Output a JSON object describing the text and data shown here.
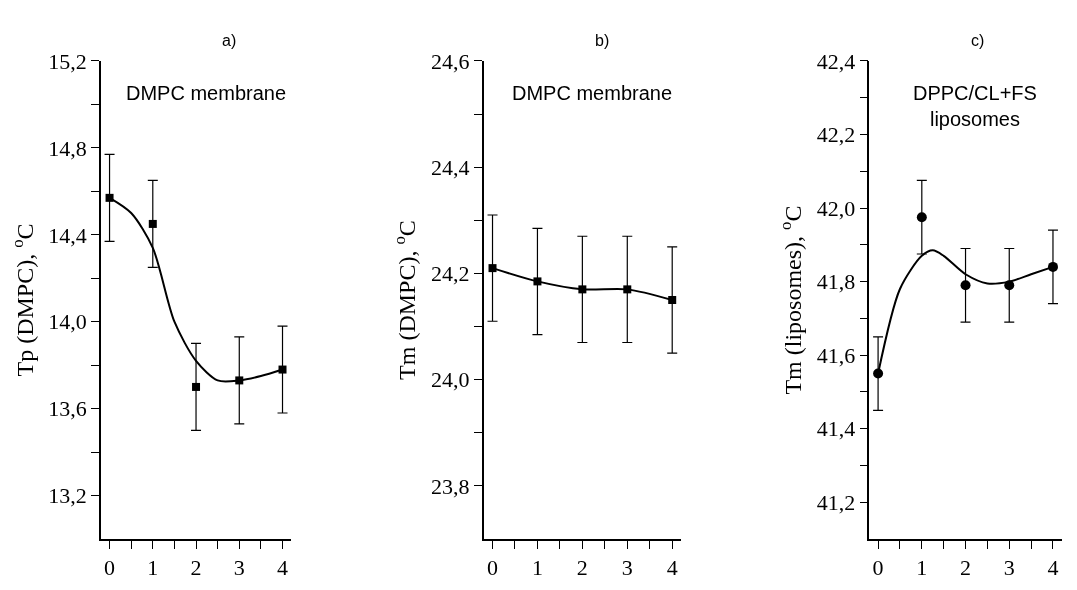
{
  "chart_data": [
    {
      "type": "scatter",
      "title": "a)",
      "ylabel": "Tp (DMPC), $^{o}$C",
      "annotations": [
        "DMPC membrane"
      ],
      "x": [
        0,
        1,
        2,
        3,
        4
      ],
      "xlim": [
        -0.2,
        4.2
      ],
      "xticks": [
        0,
        {
          "value": 0.5,
          "label": null
        },
        1,
        {
          "value": 1.5,
          "label": null
        },
        2,
        {
          "value": 2.5,
          "label": null
        },
        3,
        {
          "value": 3.5,
          "label": null
        },
        4
      ],
      "ylim": [
        13.0,
        15.2
      ],
      "yticks": [
        {
          "value": 13.2,
          "label": "13,2"
        },
        {
          "value": 13.4,
          "label": null
        },
        {
          "value": 13.6,
          "label": "13,6"
        },
        {
          "value": 13.8,
          "label": null
        },
        {
          "value": 14.0,
          "label": "14,0"
        },
        {
          "value": 14.2,
          "label": null
        },
        {
          "value": 14.4,
          "label": "14,4"
        },
        {
          "value": 14.6,
          "label": null
        },
        {
          "value": 14.8,
          "label": "14,8"
        },
        {
          "value": 15.0,
          "label": null
        },
        {
          "value": 15.2,
          "label": "15,2"
        }
      ],
      "series": [
        {
          "color": "#000000",
          "marker": "square",
          "values": [
            14.57,
            14.45,
            13.7,
            13.73,
            13.78
          ],
          "errors": [
            0.2,
            0.2,
            0.2,
            0.2,
            0.2
          ]
        },
        {
          "type": "line",
          "color": "#000000",
          "marker": "none",
          "line_style": "solid",
          "x": [
            0,
            0.5,
            1,
            1.5,
            2,
            2.5,
            3,
            3.5,
            4
          ],
          "values": [
            14.57,
            14.5,
            14.34,
            14.0,
            13.82,
            13.73,
            13.73,
            13.75,
            13.78
          ]
        }
      ]
    },
    {
      "type": "line",
      "title": "b)",
      "ylabel": "Tm (DMPC), $^{o}$C",
      "annotations": [
        "DMPC membrane"
      ],
      "x": [
        0,
        1,
        2,
        3,
        4
      ],
      "xlim": [
        -0.2,
        4.2
      ],
      "xticks": [
        0,
        {
          "value": 0.5,
          "label": null
        },
        1,
        {
          "value": 1.5,
          "label": null
        },
        2,
        {
          "value": 2.5,
          "label": null
        },
        3,
        {
          "value": 3.5,
          "label": null
        },
        4
      ],
      "ylim": [
        23.7,
        24.6
      ],
      "yticks": [
        {
          "value": 23.8,
          "label": "23,8"
        },
        {
          "value": 23.9,
          "label": null
        },
        {
          "value": 24.0,
          "label": "24,0"
        },
        {
          "value": 24.1,
          "label": null
        },
        {
          "value": 24.2,
          "label": "24,2"
        },
        {
          "value": 24.3,
          "label": null
        },
        {
          "value": 24.4,
          "label": "24,4"
        },
        {
          "value": 24.5,
          "label": null
        },
        {
          "value": 24.6,
          "label": "24,6"
        }
      ],
      "series": [
        {
          "color": "#000000",
          "marker": "square",
          "line_style": "solid",
          "values": [
            24.21,
            24.185,
            24.17,
            24.17,
            24.15
          ],
          "errors": [
            0.1,
            0.1,
            0.1,
            0.1,
            0.1
          ]
        }
      ]
    },
    {
      "type": "scatter",
      "title": "c)",
      "ylabel": "Tm (liposomes), $^{o}$C",
      "annotations": [
        "DPPC/CL+FS\nliposomes"
      ],
      "x": [
        0,
        1,
        2,
        3,
        4
      ],
      "xlim": [
        -0.2,
        4.2
      ],
      "xticks": [
        0,
        {
          "value": 0.5,
          "label": null
        },
        1,
        {
          "value": 1.5,
          "label": null
        },
        2,
        {
          "value": 2.5,
          "label": null
        },
        3,
        {
          "value": 3.5,
          "label": null
        },
        4
      ],
      "ylim": [
        41.1,
        42.4
      ],
      "yticks": [
        {
          "value": 41.2,
          "label": "41,2"
        },
        {
          "value": 41.3,
          "label": null
        },
        {
          "value": 41.4,
          "label": "41,4"
        },
        {
          "value": 41.5,
          "label": null
        },
        {
          "value": 41.6,
          "label": "41,6"
        },
        {
          "value": 41.7,
          "label": null
        },
        {
          "value": 41.8,
          "label": "41,8"
        },
        {
          "value": 41.9,
          "label": null
        },
        {
          "value": 42.0,
          "label": "42,0"
        },
        {
          "value": 42.1,
          "label": null
        },
        {
          "value": 42.2,
          "label": "42,2"
        },
        {
          "value": 42.3,
          "label": null
        },
        {
          "value": 42.4,
          "label": "42,4"
        }
      ],
      "series": [
        {
          "color": "#000000",
          "marker": "circle",
          "values": [
            41.55,
            41.975,
            41.79,
            41.79,
            41.84
          ],
          "errors": [
            0.1,
            0.1,
            0.1,
            0.1,
            0.1
          ]
        },
        {
          "type": "line",
          "color": "#000000",
          "marker": "none",
          "line_style": "solid",
          "x": [
            0,
            0.5,
            1,
            1.25,
            1.5,
            2,
            2.5,
            3,
            3.5,
            4
          ],
          "values": [
            41.55,
            41.78,
            41.87,
            41.885,
            41.87,
            41.82,
            41.795,
            41.8,
            41.82,
            41.84
          ]
        }
      ]
    }
  ]
}
